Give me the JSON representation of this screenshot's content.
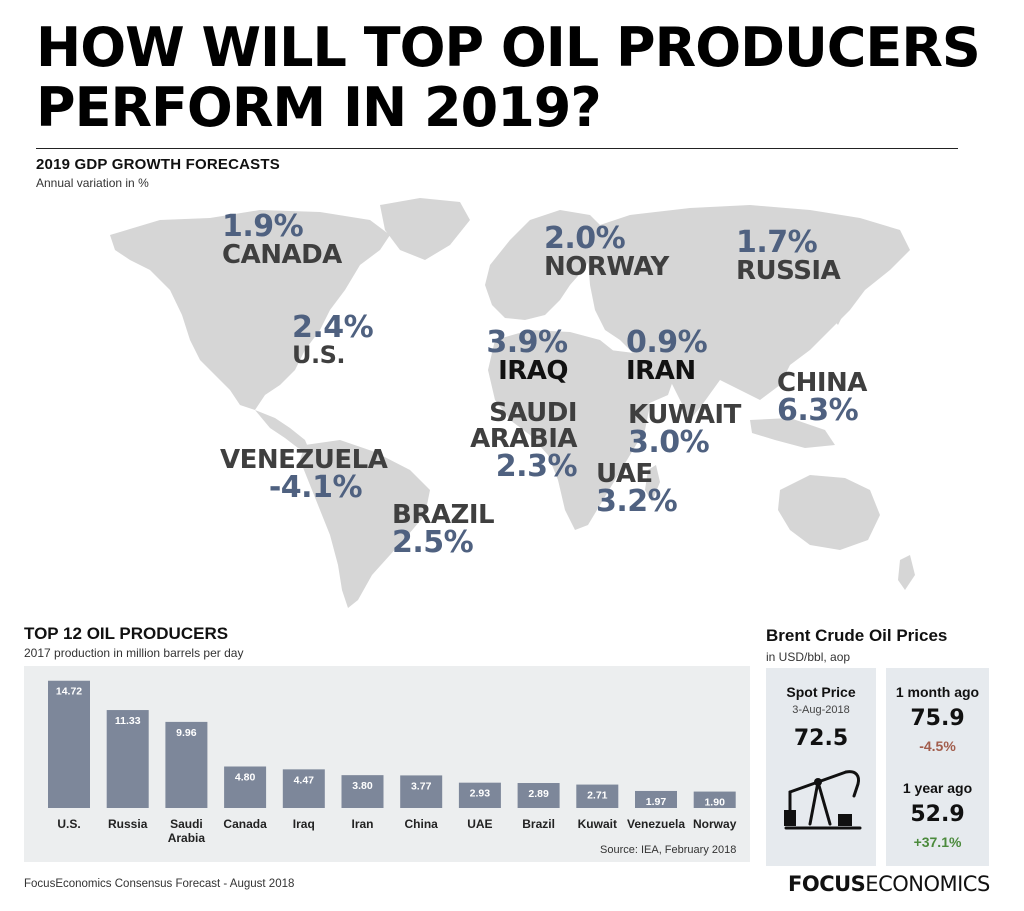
{
  "title_line1": "HOW WILL TOP OIL PRODUCERS",
  "title_line2": "PERFORM IN 2019?",
  "map": {
    "heading": "2019 GDP GROWTH FORECASTS",
    "subheading": "Annual variation in %",
    "countries": [
      {
        "name": "CANADA",
        "value": "1.9%"
      },
      {
        "name": "NORWAY",
        "value": "2.0%"
      },
      {
        "name": "RUSSIA",
        "value": "1.7%"
      },
      {
        "name": "U.S.",
        "value": "2.4%"
      },
      {
        "name": "IRAQ",
        "value": "3.9%"
      },
      {
        "name": "IRAN",
        "value": "0.9%"
      },
      {
        "name": "SAUDI ARABIA",
        "value": "2.3%"
      },
      {
        "name": "KUWAIT",
        "value": "3.0%"
      },
      {
        "name": "CHINA",
        "value": "6.3%"
      },
      {
        "name": "VENEZUELA",
        "value": "-4.1%"
      },
      {
        "name": "UAE",
        "value": "3.2%"
      },
      {
        "name": "BRAZIL",
        "value": "2.5%"
      }
    ]
  },
  "bars": {
    "heading": "TOP 12 OIL PRODUCERS",
    "subheading": "2017 production in million barrels per day",
    "source": "Source: IEA, February 2018"
  },
  "chart_data": {
    "type": "bar",
    "categories": [
      "U.S.",
      "Russia",
      "Saudi Arabia",
      "Canada",
      "Iraq",
      "Iran",
      "China",
      "UAE",
      "Brazil",
      "Kuwait",
      "Venezuela",
      "Norway"
    ],
    "values": [
      14.72,
      11.33,
      9.96,
      4.8,
      4.47,
      3.8,
      3.77,
      2.93,
      2.89,
      2.71,
      1.97,
      1.9
    ],
    "value_labels": [
      "14.72",
      "11.33",
      "9.96",
      "4.80",
      "4.47",
      "3.80",
      "3.77",
      "2.93",
      "2.89",
      "2.71",
      "1.97",
      "1.90"
    ],
    "title": "TOP 12 OIL PRODUCERS",
    "xlabel": "",
    "ylabel": "",
    "ylim": [
      0,
      15.5
    ],
    "bar_color": "#7d879a",
    "grid": false
  },
  "brent": {
    "heading": "Brent Crude Oil Prices",
    "subheading": "in USD/bbl, aop",
    "spot_label": "Spot Price",
    "spot_date": "3-Aug-2018",
    "spot_value": "72.5",
    "month_label": "1 month ago",
    "month_value": "75.9",
    "month_change": "-4.5%",
    "year_label": "1 year ago",
    "year_value": "52.9",
    "year_change": "+37.1%"
  },
  "footnote": "FocusEconomics Consensus Forecast - August 2018",
  "brand_bold": "FOCUS",
  "brand_light": "ECONOMICS",
  "colors": {
    "map": "#d6d6d6",
    "value": "#4f6180",
    "name": "#3f3f3f",
    "bar": "#7d879a",
    "negative": "#a25d4c",
    "positive": "#4b8a3c"
  },
  "icons": [
    "oil-pump-icon"
  ]
}
